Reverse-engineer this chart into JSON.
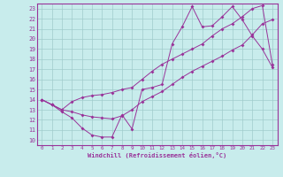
{
  "xlabel": "Windchill (Refroidissement éolien,°C)",
  "bg_color": "#c8ecec",
  "line_color": "#993399",
  "grid_color": "#a0cccc",
  "xlim": [
    -0.5,
    23.5
  ],
  "ylim": [
    9.5,
    23.5
  ],
  "xticks": [
    0,
    1,
    2,
    3,
    4,
    5,
    6,
    7,
    8,
    9,
    10,
    11,
    12,
    13,
    14,
    15,
    16,
    17,
    18,
    19,
    20,
    21,
    22,
    23
  ],
  "yticks": [
    10,
    11,
    12,
    13,
    14,
    15,
    16,
    17,
    18,
    19,
    20,
    21,
    22,
    23
  ],
  "line1_x": [
    0,
    1,
    2,
    3,
    4,
    5,
    6,
    7,
    8,
    9,
    10,
    11,
    12,
    13,
    14,
    15,
    16,
    17,
    18,
    19,
    20,
    21,
    22,
    23
  ],
  "line1_y": [
    14,
    13.5,
    12.8,
    12.2,
    11.2,
    10.5,
    10.3,
    10.3,
    12.5,
    11.1,
    15.0,
    15.2,
    15.5,
    19.5,
    21.2,
    23.2,
    21.2,
    21.3,
    22.2,
    23.2,
    21.9,
    20.3,
    19.0,
    17.2
  ],
  "line2_x": [
    0,
    1,
    2,
    3,
    4,
    5,
    6,
    7,
    8,
    9,
    10,
    11,
    12,
    13,
    14,
    15,
    16,
    17,
    18,
    19,
    20,
    21,
    22,
    23
  ],
  "line2_y": [
    14,
    13.5,
    13.0,
    13.8,
    14.2,
    14.4,
    14.5,
    14.7,
    15.0,
    15.2,
    16.0,
    16.8,
    17.5,
    18.0,
    18.5,
    19.0,
    19.5,
    20.3,
    21.0,
    21.5,
    22.2,
    23.0,
    23.3,
    17.5
  ],
  "line3_x": [
    0,
    1,
    2,
    3,
    4,
    5,
    6,
    7,
    8,
    9,
    10,
    11,
    12,
    13,
    14,
    15,
    16,
    17,
    18,
    19,
    20,
    21,
    22,
    23
  ],
  "line3_y": [
    14,
    13.5,
    13.0,
    12.8,
    12.5,
    12.3,
    12.2,
    12.1,
    12.4,
    13.0,
    13.8,
    14.3,
    14.8,
    15.5,
    16.2,
    16.8,
    17.3,
    17.8,
    18.3,
    18.9,
    19.4,
    20.4,
    21.5,
    21.9
  ],
  "marker_x1": [
    0,
    1,
    2,
    3,
    4,
    5,
    6,
    7,
    8,
    9,
    10,
    13,
    14,
    15,
    16,
    17,
    18,
    19,
    20,
    21,
    22,
    23
  ],
  "marker_x2": [
    0,
    1,
    2,
    3,
    9,
    10,
    11,
    12,
    13,
    14,
    15,
    16,
    17,
    18,
    19,
    20,
    21,
    22,
    23
  ],
  "marker_x3": [
    0,
    1,
    2,
    3,
    4,
    5,
    6,
    7,
    8,
    9,
    10,
    11,
    12,
    13,
    14,
    15,
    16,
    17,
    18,
    19,
    20,
    21,
    22,
    23
  ]
}
